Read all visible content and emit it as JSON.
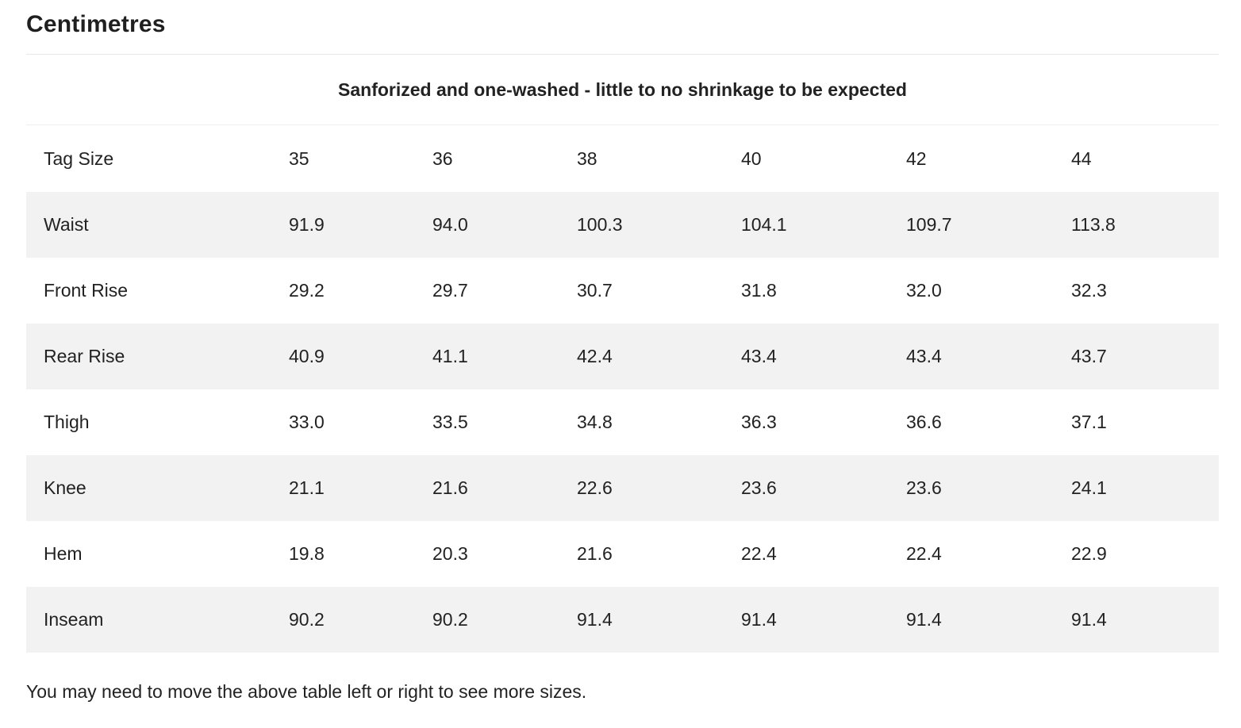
{
  "section_title": "Centimetres",
  "caption": "Sanforized and one-washed - little to no shrinkage to be expected",
  "table": {
    "header": [
      "Tag Size",
      "35",
      "36",
      "38",
      "40",
      "42",
      "44"
    ],
    "rows": [
      [
        "Waist",
        "91.9",
        "94.0",
        "100.3",
        "104.1",
        "109.7",
        "113.8"
      ],
      [
        "Front Rise",
        "29.2",
        "29.7",
        "30.7",
        "31.8",
        "32.0",
        "32.3"
      ],
      [
        "Rear Rise",
        "40.9",
        "41.1",
        "42.4",
        "43.4",
        "43.4",
        "43.7"
      ],
      [
        "Thigh",
        "33.0",
        "33.5",
        "34.8",
        "36.3",
        "36.6",
        "37.1"
      ],
      [
        "Knee",
        "21.1",
        "21.6",
        "22.6",
        "23.6",
        "23.6",
        "24.1"
      ],
      [
        "Hem",
        "19.8",
        "20.3",
        "21.6",
        "22.4",
        "22.4",
        "22.9"
      ],
      [
        "Inseam",
        "90.2",
        "90.2",
        "91.4",
        "91.4",
        "91.4",
        "91.4"
      ]
    ]
  },
  "note": "You may need to move the above table left or right to see more sizes.",
  "colors": {
    "stripe": "#f2f2f2",
    "text": "#222222"
  }
}
